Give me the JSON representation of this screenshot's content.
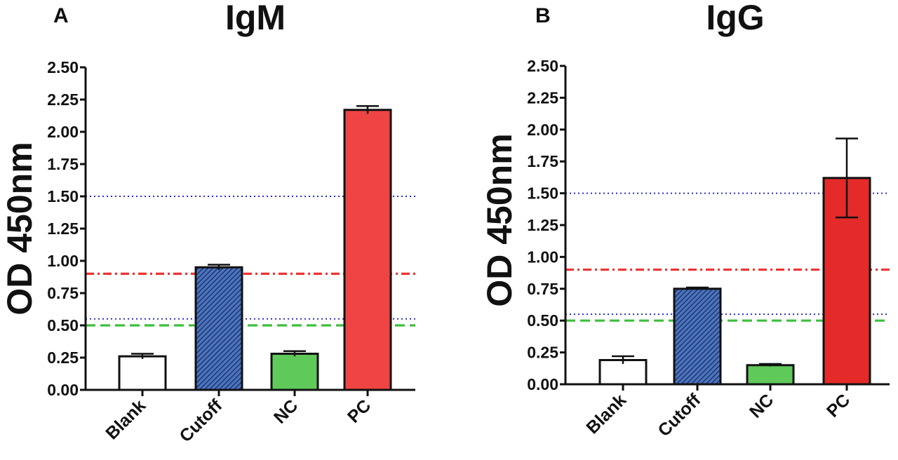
{
  "chart_data": [
    {
      "panel": "A",
      "title": "IgM",
      "type": "bar",
      "ylabel": "OD 450nm",
      "xlabel": "",
      "ylim": [
        0,
        2.5
      ],
      "yticks": [
        "0.00",
        "0.25",
        "0.50",
        "0.75",
        "1.00",
        "1.25",
        "1.50",
        "1.75",
        "2.00",
        "2.25",
        "2.50"
      ],
      "categories": [
        "Blank",
        "Cutoff",
        "NC",
        "PC"
      ],
      "values": [
        0.26,
        0.95,
        0.28,
        2.17
      ],
      "errors": [
        0.02,
        0.02,
        0.02,
        0.03
      ],
      "bar_colors": [
        "#ffffff",
        "#4a74c0",
        "#5fc95a",
        "#ef4444"
      ],
      "bar_patterns": [
        "none",
        "hatch",
        "none",
        "none"
      ],
      "reference_lines": [
        {
          "y": 1.5,
          "style": "dotted",
          "color": "#2a2ad8"
        },
        {
          "y": 0.9,
          "style": "dash-dot",
          "color": "#ee3333"
        },
        {
          "y": 0.55,
          "style": "dotted",
          "color": "#2a2ad8"
        },
        {
          "y": 0.5,
          "style": "dashed",
          "color": "#3cbf3c"
        }
      ],
      "grid": false
    },
    {
      "panel": "B",
      "title": "IgG",
      "type": "bar",
      "ylabel": "OD 450nm",
      "xlabel": "",
      "ylim": [
        0,
        2.5
      ],
      "yticks": [
        "0.00",
        "0.25",
        "0.50",
        "0.75",
        "1.00",
        "1.25",
        "1.50",
        "1.75",
        "2.00",
        "2.25",
        "2.50"
      ],
      "categories": [
        "Blank",
        "Cutoff",
        "NC",
        "PC"
      ],
      "values": [
        0.19,
        0.75,
        0.15,
        1.62
      ],
      "errors": [
        0.03,
        0.01,
        0.01,
        0.31
      ],
      "bar_colors": [
        "#ffffff",
        "#4a74c0",
        "#5fc95a",
        "#e52a2a"
      ],
      "bar_patterns": [
        "none",
        "hatch",
        "none",
        "none"
      ],
      "reference_lines": [
        {
          "y": 1.5,
          "style": "dotted",
          "color": "#2a2ad8"
        },
        {
          "y": 0.9,
          "style": "dash-dot",
          "color": "#ee3333"
        },
        {
          "y": 0.55,
          "style": "dotted",
          "color": "#2a2ad8"
        },
        {
          "y": 0.5,
          "style": "dashed",
          "color": "#3cbf3c"
        }
      ],
      "grid": false
    }
  ]
}
